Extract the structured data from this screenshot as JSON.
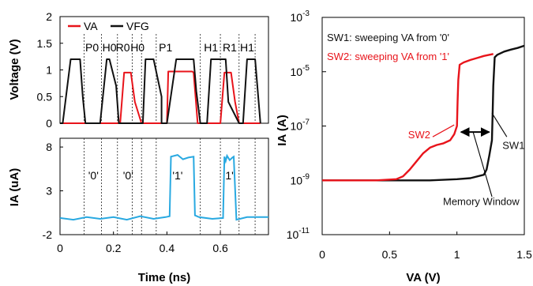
{
  "chart_data": [
    {
      "type": "line",
      "ylabel": "Voltage (V)",
      "xlim": [
        0,
        0.78
      ],
      "ylim": [
        0,
        2
      ],
      "yticks": [
        "2",
        "1.5",
        "1",
        "0.5",
        "0"
      ],
      "colors": {
        "VA": "#e8141b",
        "VFG": "#111111"
      },
      "series": [
        {
          "name": "VA",
          "x": [
            0,
            0.225,
            0.24,
            0.265,
            0.28,
            0.305,
            0.4,
            0.405,
            0.495,
            0.5,
            0.515,
            0.6,
            0.615,
            0.64,
            0.655,
            0.67,
            0.75
          ],
          "y": [
            0,
            0,
            0.95,
            0.95,
            0.4,
            0,
            0,
            0.97,
            0.97,
            0.95,
            0,
            0,
            0.95,
            0.95,
            0.4,
            0,
            0
          ]
        },
        {
          "name": "VFG",
          "x": [
            0,
            0.01,
            0.04,
            0.075,
            0.085,
            0.095,
            0.15,
            0.175,
            0.185,
            0.21,
            0.22,
            0.31,
            0.32,
            0.35,
            0.38,
            0.38,
            0.4,
            0.435,
            0.45,
            0.5,
            0.51,
            0.525,
            0.55,
            0.565,
            0.62,
            0.63,
            0.67,
            0.685,
            0.7,
            0.73,
            0.75
          ],
          "y": [
            0,
            0,
            1.2,
            1.2,
            0.5,
            0,
            0,
            1.2,
            1.2,
            0.7,
            0,
            0,
            1.2,
            1.2,
            0.5,
            0,
            0,
            1.2,
            1.2,
            1.2,
            0.6,
            0,
            0,
            1.2,
            1.2,
            0.4,
            0,
            0,
            1.2,
            1.2,
            0
          ]
        }
      ],
      "legend": [
        "VA",
        "VFG"
      ],
      "phase_labels": [
        {
          "text": "P0",
          "x": 0.12
        },
        {
          "text": "H0",
          "x": 0.185
        },
        {
          "text": "R0",
          "x": 0.235
        },
        {
          "text": "H0",
          "x": 0.29
        },
        {
          "text": "P1",
          "x": 0.395
        },
        {
          "text": "H1",
          "x": 0.565
        },
        {
          "text": "R1",
          "x": 0.635
        },
        {
          "text": "H1",
          "x": 0.7
        }
      ],
      "dashed_x": [
        0.09,
        0.155,
        0.215,
        0.27,
        0.305,
        0.36,
        0.525,
        0.6,
        0.67,
        0.73
      ]
    },
    {
      "type": "line",
      "xlabel": "Time (ns)",
      "ylabel": "IA (uA)",
      "xlim": [
        0,
        0.78
      ],
      "ylim": [
        -2,
        9
      ],
      "xticks": [
        "0",
        "0.2",
        "0.4",
        "0.6"
      ],
      "yticks": [
        "8",
        "3",
        "-2"
      ],
      "colors": {
        "IA": "#29a9e1"
      },
      "series": [
        {
          "name": "IA",
          "x": [
            0,
            0.05,
            0.1,
            0.15,
            0.2,
            0.25,
            0.3,
            0.35,
            0.395,
            0.41,
            0.415,
            0.44,
            0.46,
            0.48,
            0.5,
            0.505,
            0.52,
            0.57,
            0.61,
            0.615,
            0.62,
            0.625,
            0.635,
            0.645,
            0.65,
            0.66,
            0.7,
            0.78
          ],
          "y": [
            -0.1,
            -0.3,
            0.0,
            -0.2,
            0.0,
            -0.3,
            0.1,
            -0.2,
            0.0,
            0.1,
            6.9,
            7.1,
            6.6,
            6.8,
            6.9,
            0.2,
            0.0,
            -0.2,
            -0.1,
            6.9,
            6.4,
            7.0,
            6.5,
            6.8,
            6.9,
            -0.3,
            0.0,
            0.0
          ]
        }
      ],
      "annotations": [
        {
          "text": "'0'",
          "x": 0.125,
          "y": 4.3
        },
        {
          "text": "'0'",
          "x": 0.255,
          "y": 4.3
        },
        {
          "text": "'1'",
          "x": 0.44,
          "y": 4.3
        },
        {
          "text": "'1'",
          "x": 0.63,
          "y": 4.3
        }
      ],
      "dashed_x": [
        0.09,
        0.155,
        0.215,
        0.27,
        0.305,
        0.36,
        0.525,
        0.6,
        0.67,
        0.73
      ]
    },
    {
      "type": "line",
      "xlabel": "VA (V)",
      "ylabel": "IA (A)",
      "xscale": "linear",
      "yscale": "log",
      "xlim": [
        0,
        1.5
      ],
      "ylim": [
        1e-11,
        0.001
      ],
      "xticks": [
        "0",
        "0.5",
        "1",
        "1.5"
      ],
      "yticks": [
        {
          "base": "10",
          "exp": "-3",
          "value": 0.001
        },
        {
          "base": "10",
          "exp": "-5",
          "value": 1e-05
        },
        {
          "base": "10",
          "exp": "-7",
          "value": 1e-07
        },
        {
          "base": "10",
          "exp": "-9",
          "value": 1e-09
        },
        {
          "base": "10",
          "exp": "-11",
          "value": 1e-11
        }
      ],
      "colors": {
        "SW1": "#111111",
        "SW2": "#e8141b"
      },
      "series": [
        {
          "name": "SW1",
          "x": [
            0,
            0.2,
            0.5,
            0.8,
            1.0,
            1.1,
            1.2,
            1.22,
            1.24,
            1.26,
            1.265,
            1.27,
            1.28,
            1.3,
            1.35,
            1.4,
            1.45,
            1.5
          ],
          "y": [
            1e-09,
            1e-09,
            1e-09,
            1e-09,
            1.1e-09,
            1.2e-09,
            1.6e-09,
            2.5e-09,
            8e-09,
            3e-08,
            3e-07,
            3e-06,
            3.4e-05,
            4.2e-05,
            5.5e-05,
            6.5e-05,
            7.5e-05,
            9e-05
          ]
        },
        {
          "name": "SW2",
          "x": [
            0,
            0.2,
            0.4,
            0.55,
            0.6,
            0.65,
            0.7,
            0.75,
            0.8,
            0.85,
            0.9,
            0.95,
            0.98,
            1.0,
            1.005,
            1.01,
            1.02,
            1.05,
            1.1,
            1.15,
            1.2,
            1.27
          ],
          "y": [
            1e-09,
            1e-09,
            1e-09,
            1.1e-09,
            1.4e-09,
            2.5e-09,
            5e-09,
            1e-08,
            1.6e-08,
            2e-08,
            2.3e-08,
            3e-08,
            5e-08,
            1e-07,
            8e-07,
            5e-06,
            1.8e-05,
            2.2e-05,
            2.7e-05,
            3.2e-05,
            3.8e-05,
            4.5e-05
          ]
        }
      ],
      "legend_text": [
        {
          "text": "SW1: sweeping VA from '0'",
          "color": "#111111"
        },
        {
          "text": "SW2: sweeping VA from '1'",
          "color": "#e8141b"
        }
      ],
      "annotations": [
        {
          "text": "SW2",
          "color": "#e8141b"
        },
        {
          "text": "SW1",
          "color": "#111111"
        },
        {
          "text": "Memory Window",
          "color": "#111111"
        }
      ]
    }
  ]
}
